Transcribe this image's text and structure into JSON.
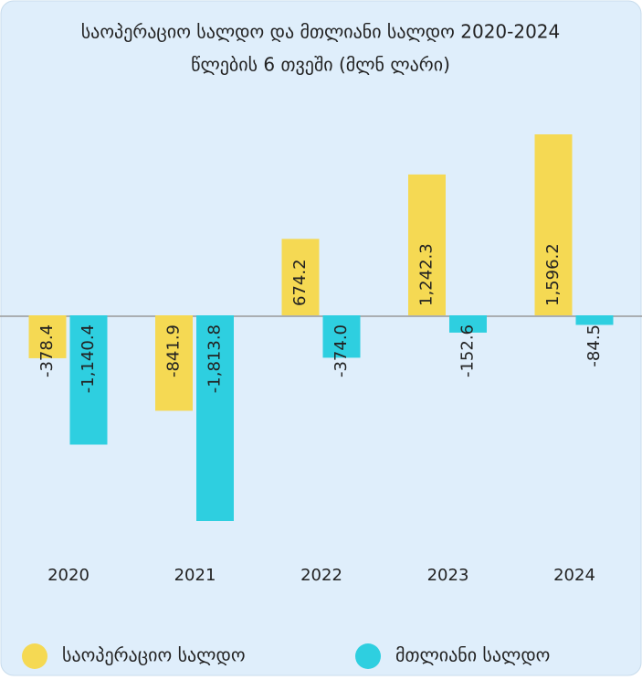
{
  "chart_data": {
    "type": "bar",
    "title": "საოპერაციო სალდო და მთლიანი სალდო 2020-2024",
    "subtitle": "წლების 6 თვეში (მლნ ლარი)",
    "categories": [
      "2020",
      "2021",
      "2022",
      "2023",
      "2024"
    ],
    "series": [
      {
        "name": "საოპერაციო სალდო",
        "color": "#f5d953",
        "values": [
          -378.4,
          -841.9,
          674.2,
          1242.3,
          1596.2
        ],
        "value_labels": [
          "-378.4",
          "-841.9",
          "674.2",
          "1,242.3",
          "1,596.2"
        ]
      },
      {
        "name": "მთლიანი სალდო",
        "color": "#2ecfe0",
        "values": [
          -1140.4,
          -1813.8,
          -374.0,
          -152.6,
          -84.5
        ],
        "value_labels": [
          "-1,140.4",
          "-1,813.8",
          "-374.0",
          "-152.6",
          "-84.5"
        ]
      }
    ]
  }
}
